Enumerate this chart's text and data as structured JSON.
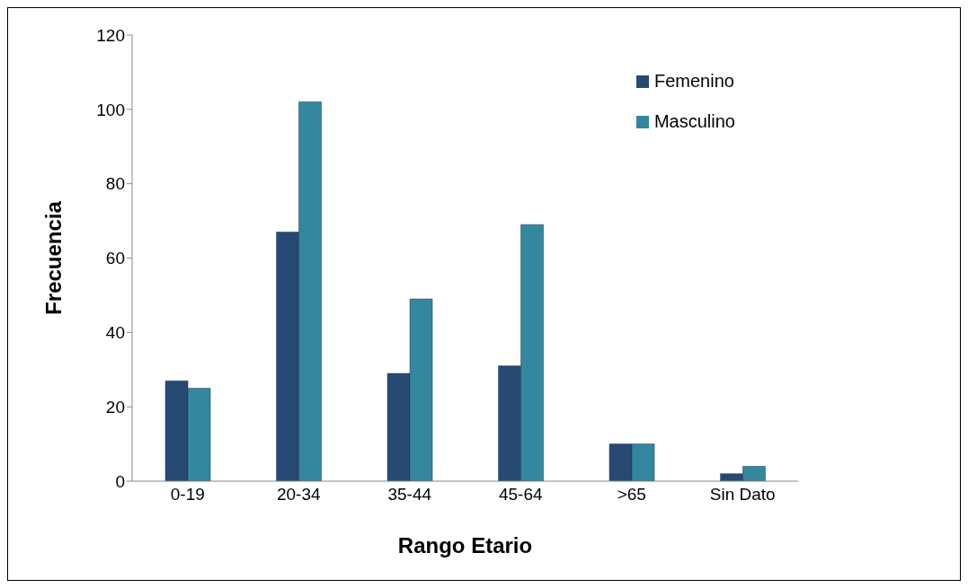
{
  "chart_data": {
    "type": "bar",
    "xlabel": "Rango Etario",
    "ylabel": "Frecuencia",
    "categories": [
      "0-19",
      "20-34",
      "35-44",
      "45-64",
      ">65",
      "Sin Dato"
    ],
    "series": [
      {
        "name": "Femenino",
        "color": "#264a73",
        "values": [
          27,
          67,
          29,
          31,
          10,
          2
        ]
      },
      {
        "name": "Masculino",
        "color": "#33879e",
        "values": [
          25,
          102,
          49,
          69,
          10,
          4
        ]
      }
    ],
    "ylim": [
      0,
      120
    ],
    "yticks": [
      0,
      20,
      40,
      60,
      80,
      100,
      120
    ],
    "legend": "top right"
  }
}
